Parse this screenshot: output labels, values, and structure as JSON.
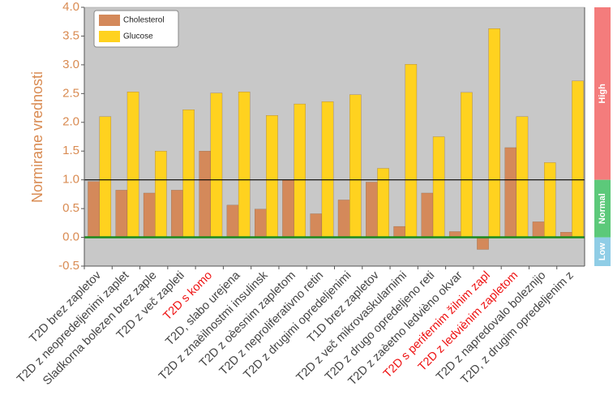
{
  "chart_data": {
    "type": "bar",
    "ylabel": "Normirane vrednosti",
    "ylim": [
      -0.5,
      4.0
    ],
    "yticks": [
      "-0.5",
      "0.0",
      "0.5",
      "1.0",
      "1.5",
      "2.0",
      "2.5",
      "3.0",
      "3.5",
      "4.0"
    ],
    "grid": false,
    "legend_position": "top-left",
    "reference_lines": [
      {
        "y": 1.0,
        "color": "#000000"
      },
      {
        "y": 0.0,
        "color": "#1c8a1c"
      }
    ],
    "zones": [
      {
        "label": "High",
        "from": 1.0,
        "to": 4.0,
        "color": "#f47c7c"
      },
      {
        "label": "Normal",
        "from": 0.0,
        "to": 1.0,
        "color": "#5cc97a"
      },
      {
        "label": "Low",
        "from": -0.5,
        "to": 0.0,
        "color": "#8fcde6"
      }
    ],
    "categories": [
      "T2D brez zapletov",
      "T2D z neopredeljenimi zaplet",
      "Sladkorna bolezen brez zaple",
      "T2D z več zapleti",
      "T2D s komo",
      "T2D, slabo urejena",
      "T2D z znaèilnostmi insulinsk",
      "T2D z oèesnim zapletom",
      "T2D z neproliferativno retin",
      "T2D z drugimi opredeljenimi",
      "T1D brez zapletov",
      "T2D z več mikrovaskularnimi",
      "T2D z drugo opredeljeno reti",
      "T2D z zaèetno ledvièno okvar",
      "T2D s perifernim žilnim zapl",
      "T2D z ledviènim zapletom",
      "T2D z napredovalo boleznijo",
      "T2D, z drugim opredeljenim z"
    ],
    "highlighted_categories": [
      4,
      14,
      15
    ],
    "highlight_color": "#ee1111",
    "series": [
      {
        "name": "Cholesterol",
        "color": "#d4895a",
        "values": [
          0.97,
          0.82,
          0.77,
          0.82,
          1.5,
          0.56,
          0.49,
          1.0,
          0.41,
          0.65,
          0.96,
          0.19,
          0.77,
          0.1,
          -0.21,
          1.56,
          0.27,
          0.09
        ]
      },
      {
        "name": "Glucose",
        "color": "#ffd21f",
        "values": [
          2.1,
          2.53,
          1.5,
          2.22,
          2.51,
          2.53,
          2.12,
          2.32,
          2.36,
          2.48,
          1.2,
          3.01,
          1.75,
          2.52,
          3.63,
          2.1,
          1.3,
          2.72
        ]
      }
    ]
  }
}
